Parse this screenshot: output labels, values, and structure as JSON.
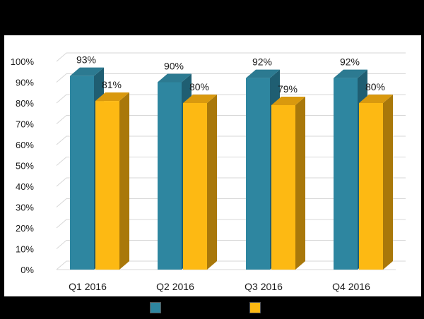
{
  "colors": {
    "background": "#000000",
    "panel": "#ffffff",
    "series1": "#2E86A0",
    "series1_top": "#2C7A91",
    "series1_side": "#1F5E72",
    "series2": "#FDB913",
    "series2_top": "#D9990E",
    "series2_side": "#A9780A",
    "grid": "#d7d7d7",
    "text": "#1a1a1a"
  },
  "chart_data": {
    "type": "bar",
    "style": "3d-clustered-column",
    "categories": [
      "Q1 2016",
      "Q2 2016",
      "Q3 2016",
      "Q4 2016"
    ],
    "series": [
      {
        "name": "",
        "values": [
          93,
          90,
          92,
          92
        ],
        "labels": [
          "93%",
          "90%",
          "92%",
          "92%"
        ]
      },
      {
        "name": "",
        "values": [
          81,
          80,
          79,
          80
        ],
        "labels": [
          "81%",
          "80%",
          "79%",
          "80%"
        ]
      }
    ],
    "ylim": [
      0,
      100
    ],
    "ytick_step": 10,
    "ytick_labels": [
      "0%",
      "10%",
      "20%",
      "30%",
      "40%",
      "50%",
      "60%",
      "70%",
      "80%",
      "90%",
      "100%"
    ],
    "grid": true,
    "legend": "bottom",
    "title": "",
    "xlabel": "",
    "ylabel": ""
  }
}
